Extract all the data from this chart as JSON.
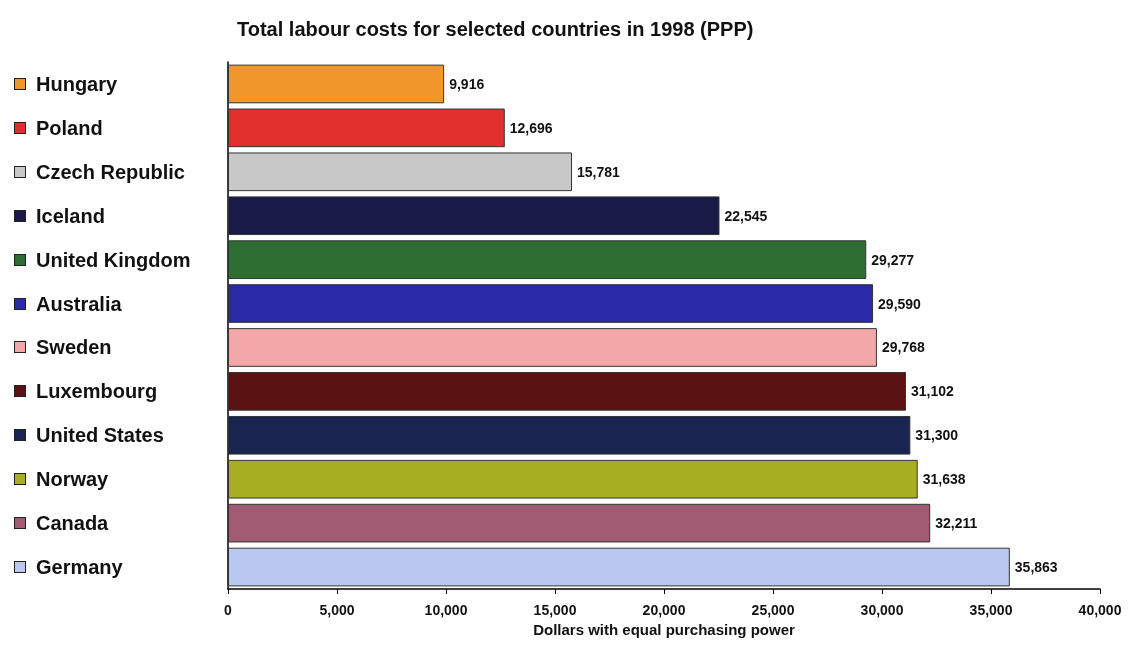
{
  "chart_data": {
    "type": "bar",
    "orientation": "horizontal",
    "title": "Total labour costs for selected countries in 1998 (PPP)",
    "xlabel": "Dollars with equal purchasing power",
    "categories": [
      "Hungary",
      "Poland",
      "Czech Republic",
      "Iceland",
      "United Kingdom",
      "Australia",
      "Sweden",
      "Luxembourg",
      "United States",
      "Norway",
      "Canada",
      "Germany"
    ],
    "values": [
      9916,
      12696,
      15781,
      22545,
      29277,
      29590,
      29768,
      31102,
      31300,
      31638,
      32211,
      35863
    ],
    "value_labels": [
      "9,916",
      "12,696",
      "15,781",
      "22,545",
      "29,277",
      "29,590",
      "29,768",
      "31,102",
      "31,300",
      "31,638",
      "32,211",
      "35,863"
    ],
    "colors": [
      "#f0962a",
      "#e0302e",
      "#c8c8c8",
      "#1a1a48",
      "#2e6e32",
      "#2a2aa8",
      "#f2a8a8",
      "#5a1212",
      "#1a2450",
      "#a8ae22",
      "#a05a72",
      "#b8c8f0"
    ],
    "xlim": [
      0,
      40000
    ],
    "xticks": [
      {
        "value": 0,
        "label": "0"
      },
      {
        "value": 5000,
        "label": "5,000"
      },
      {
        "value": 10000,
        "label": "10,000"
      },
      {
        "value": 15000,
        "label": "15,000"
      },
      {
        "value": 20000,
        "label": "20,000"
      },
      {
        "value": 25000,
        "label": "25,000"
      },
      {
        "value": 30000,
        "label": "30,000"
      },
      {
        "value": 35000,
        "label": "35,000"
      },
      {
        "value": 40000,
        "label": "40,000"
      }
    ],
    "grid": false
  }
}
